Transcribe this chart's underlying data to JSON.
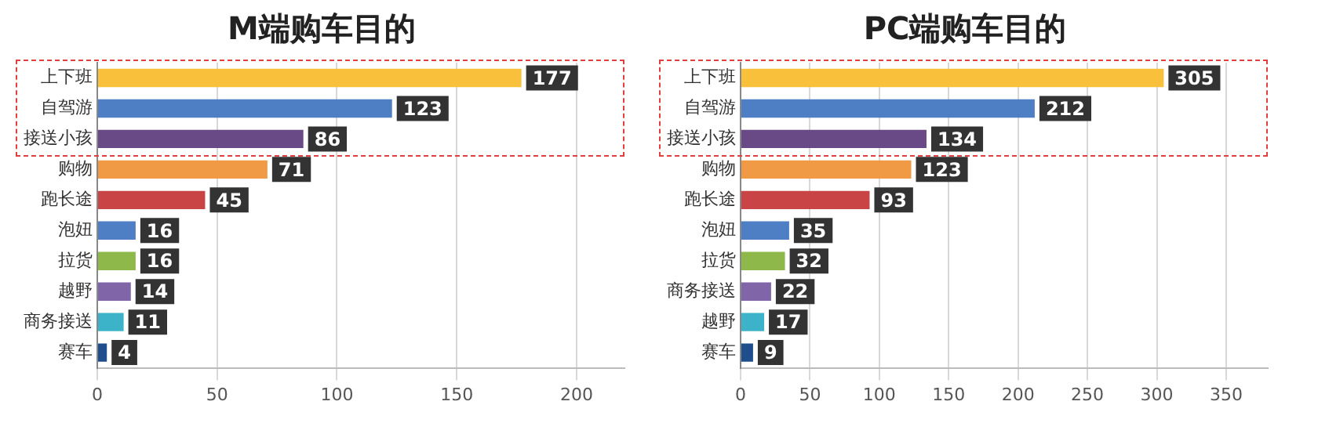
{
  "chart_data": [
    {
      "type": "bar",
      "orientation": "horizontal",
      "title": "M端购车目的",
      "categories": [
        "上下班",
        "自驾游",
        "接送小孩",
        "购物",
        "跑长途",
        "泡妞",
        "拉货",
        "越野",
        "商务接送",
        "赛车"
      ],
      "values": [
        177,
        123,
        86,
        71,
        45,
        16,
        16,
        14,
        11,
        4
      ],
      "colors": [
        "#f9c03c",
        "#4e7ec4",
        "#6a4a86",
        "#f09a45",
        "#c94444",
        "#4e7ec4",
        "#8fb84a",
        "#8065a8",
        "#3cb3c9",
        "#1f4e8c"
      ],
      "xlim": [
        0,
        220
      ],
      "xticks": [
        0,
        50,
        100,
        150,
        200
      ],
      "grid": "x",
      "data_labels": true
    },
    {
      "type": "bar",
      "orientation": "horizontal",
      "title": "PC端购车目的",
      "categories": [
        "上下班",
        "自驾游",
        "接送小孩",
        "购物",
        "跑长途",
        "泡妞",
        "拉货",
        "商务接送",
        "越野",
        "赛车"
      ],
      "values": [
        305,
        212,
        134,
        123,
        93,
        35,
        32,
        22,
        17,
        9
      ],
      "colors": [
        "#f9c03c",
        "#4e7ec4",
        "#6a4a86",
        "#f09a45",
        "#c94444",
        "#4e7ec4",
        "#8fb84a",
        "#8065a8",
        "#3cb3c9",
        "#1f4e8c"
      ],
      "xlim": [
        0,
        380
      ],
      "xticks": [
        0,
        50,
        100,
        150,
        200,
        250,
        300,
        350
      ],
      "grid": "x",
      "data_labels": true
    }
  ]
}
